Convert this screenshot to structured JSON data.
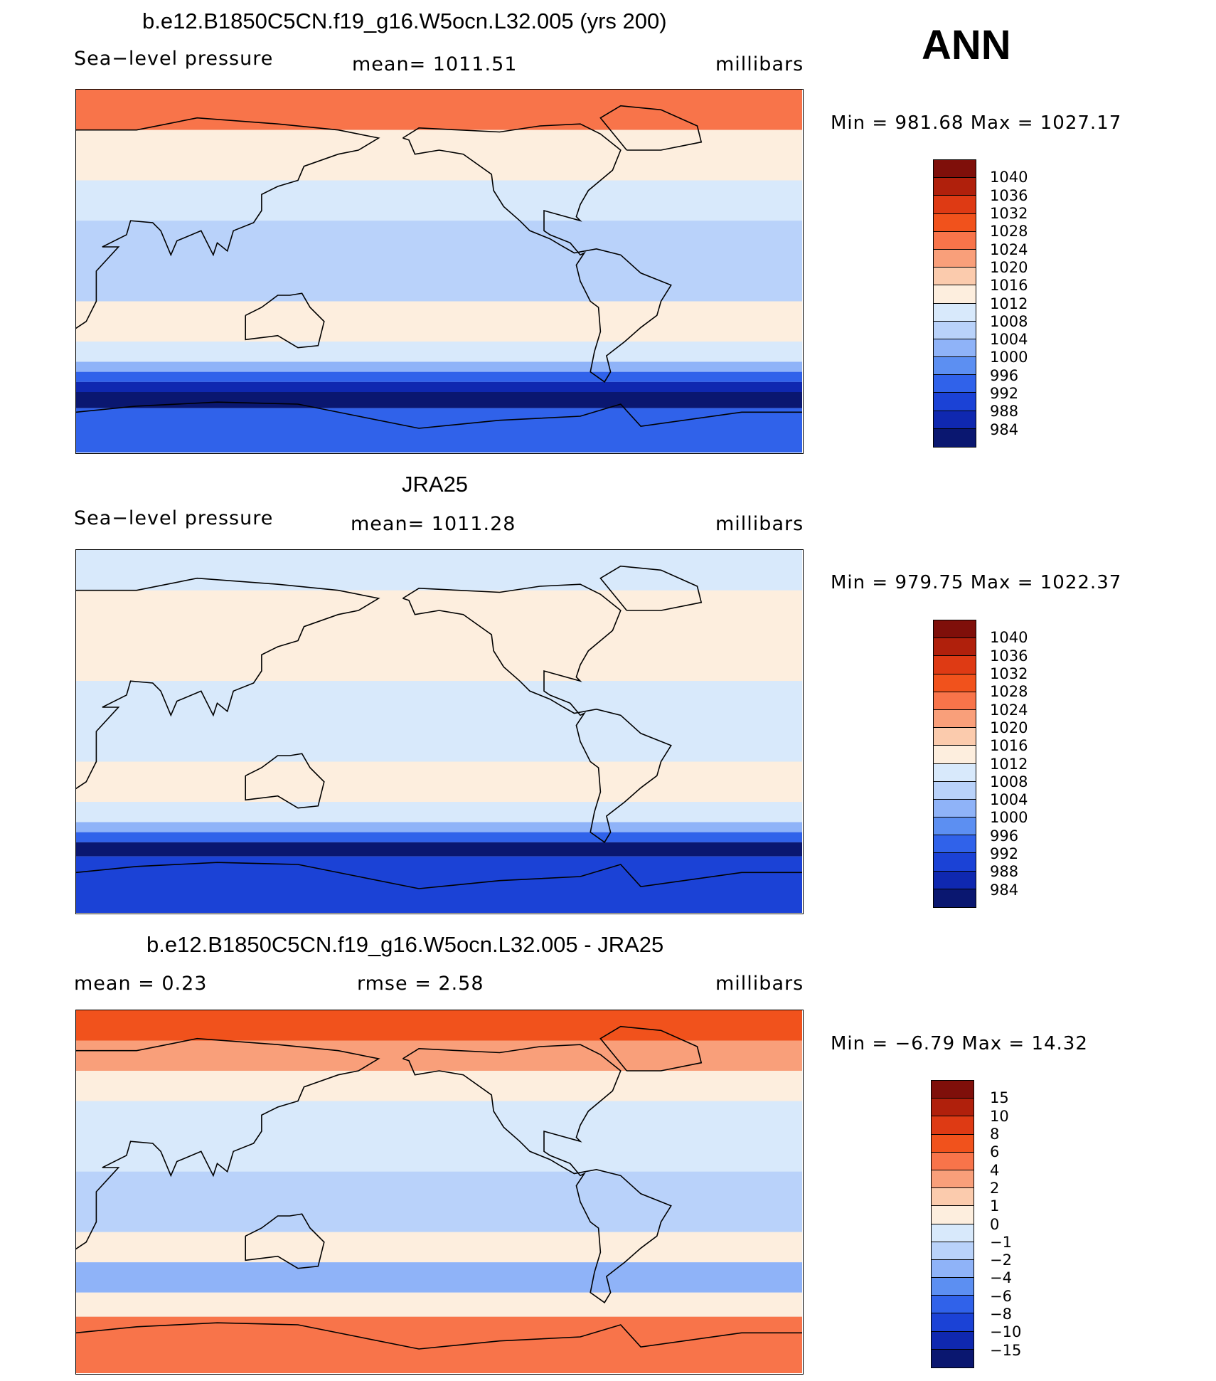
{
  "season": "ANN",
  "panels": [
    {
      "id": "model",
      "title": "b.e12.B1850C5CN.f19_g16.W5ocn.L32.005 (yrs 200)",
      "left_label": "Sea−level pressure",
      "center_label": "mean=  1011.51",
      "right_label": "millibars",
      "minmax": "Min  =  981.68  Max  =  1027.17",
      "levels": [
        "1040",
        "1036",
        "1032",
        "1028",
        "1024",
        "1020",
        "1016",
        "1012",
        "1008",
        "1004",
        "1000",
        "996",
        "992",
        "988",
        "984"
      ],
      "colors": [
        "#7f0f0a",
        "#b0200c",
        "#de3a14",
        "#f1521c",
        "#f8744a",
        "#f99f7a",
        "#fbcbad",
        "#fdeede",
        "#d8e9fb",
        "#b9d2fa",
        "#8fb3f8",
        "#5c8ff2",
        "#3062ea",
        "#1b42d6",
        "#0f28b0",
        "#0a1770"
      ],
      "bands": [
        {
          "lat_s": 90,
          "lat_n": 70,
          "level": "1028"
        },
        {
          "lat_s": 70,
          "lat_n": 45,
          "level": "1016"
        },
        {
          "lat_s": 45,
          "lat_n": 25,
          "level": "1012"
        },
        {
          "lat_s": 25,
          "lat_n": -15,
          "level": "1008"
        },
        {
          "lat_s": -15,
          "lat_n": -35,
          "level": "1016"
        },
        {
          "lat_s": -35,
          "lat_n": -45,
          "level": "1012"
        },
        {
          "lat_s": -45,
          "lat_n": -50,
          "level": "1004"
        },
        {
          "lat_s": -50,
          "lat_n": -55,
          "level": "996"
        },
        {
          "lat_s": -55,
          "lat_n": -60,
          "level": "988"
        },
        {
          "lat_s": -60,
          "lat_n": -68,
          "level": "984"
        },
        {
          "lat_s": -68,
          "lat_n": -90,
          "level": "996"
        }
      ]
    },
    {
      "id": "obs",
      "title": "JRA25",
      "left_label": "Sea−level pressure",
      "center_label": "mean=  1011.28",
      "right_label": "millibars",
      "minmax": "Min  =  979.75  Max  =  1022.37",
      "levels": [
        "1040",
        "1036",
        "1032",
        "1028",
        "1024",
        "1020",
        "1016",
        "1012",
        "1008",
        "1004",
        "1000",
        "996",
        "992",
        "988",
        "984"
      ],
      "colors": [
        "#7f0f0a",
        "#b0200c",
        "#de3a14",
        "#f1521c",
        "#f8744a",
        "#f99f7a",
        "#fbcbad",
        "#fdeede",
        "#d8e9fb",
        "#b9d2fa",
        "#8fb3f8",
        "#5c8ff2",
        "#3062ea",
        "#1b42d6",
        "#0f28b0",
        "#0a1770"
      ],
      "bands": [
        {
          "lat_s": 90,
          "lat_n": 70,
          "level": "1012"
        },
        {
          "lat_s": 70,
          "lat_n": 45,
          "level": "1016"
        },
        {
          "lat_s": 45,
          "lat_n": 25,
          "level": "1016"
        },
        {
          "lat_s": 25,
          "lat_n": -15,
          "level": "1012"
        },
        {
          "lat_s": -15,
          "lat_n": -35,
          "level": "1016"
        },
        {
          "lat_s": -35,
          "lat_n": -45,
          "level": "1012"
        },
        {
          "lat_s": -45,
          "lat_n": -50,
          "level": "1004"
        },
        {
          "lat_s": -50,
          "lat_n": -55,
          "level": "996"
        },
        {
          "lat_s": -55,
          "lat_n": -62,
          "level": "984"
        },
        {
          "lat_s": -62,
          "lat_n": -90,
          "level": "992"
        }
      ]
    },
    {
      "id": "diff",
      "title": "b.e12.B1850C5CN.f19_g16.W5ocn.L32.005 - JRA25",
      "left_label": "mean =     0.23",
      "center_label": "rmse =     2.58",
      "right_label": "millibars",
      "minmax": "Min  =   −6.79  Max  =    14.32",
      "levels": [
        "15",
        "10",
        "8",
        "6",
        "4",
        "2",
        "1",
        "0",
        "−1",
        "−2",
        "−4",
        "−6",
        "−8",
        "−10",
        "−15"
      ],
      "colors": [
        "#7f0f0a",
        "#b0200c",
        "#de3a14",
        "#f1521c",
        "#f8744a",
        "#f99f7a",
        "#fbcbad",
        "#fdeede",
        "#d8e9fb",
        "#b9d2fa",
        "#8fb3f8",
        "#5c8ff2",
        "#3062ea",
        "#1b42d6",
        "#0f28b0",
        "#0a1770"
      ],
      "bands": [
        {
          "lat_s": 90,
          "lat_n": 75,
          "level": "8"
        },
        {
          "lat_s": 75,
          "lat_n": 60,
          "level": "4"
        },
        {
          "lat_s": 60,
          "lat_n": 45,
          "level": "1"
        },
        {
          "lat_s": 45,
          "lat_n": 10,
          "level": "0"
        },
        {
          "lat_s": 10,
          "lat_n": -20,
          "level": "−1"
        },
        {
          "lat_s": -20,
          "lat_n": -35,
          "level": "1"
        },
        {
          "lat_s": -35,
          "lat_n": -50,
          "level": "−2"
        },
        {
          "lat_s": -50,
          "lat_n": -62,
          "level": "1"
        },
        {
          "lat_s": -62,
          "lat_n": -90,
          "level": "6"
        }
      ]
    }
  ]
}
